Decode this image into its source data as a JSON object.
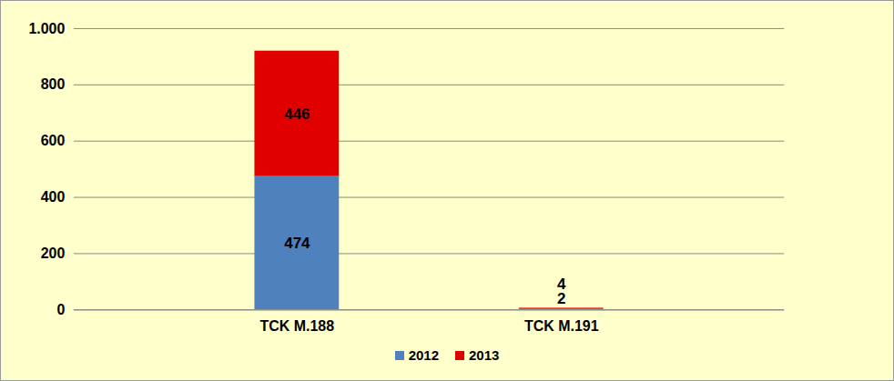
{
  "chart_data": {
    "type": "bar",
    "stacked": true,
    "data_labels": true,
    "grid": true,
    "legend": "bottom",
    "categories": [
      "TCK M.188",
      "TCK M.191"
    ],
    "series": [
      {
        "name": "2012",
        "color": "#4f81bd",
        "values": [
          474,
          2
        ]
      },
      {
        "name": "2013",
        "color": "#e00000",
        "values": [
          446,
          4
        ]
      }
    ],
    "ylim": [
      0,
      1000
    ],
    "yticks": [
      0,
      200,
      400,
      600,
      800,
      {
        "value": 1000,
        "label": "1.000"
      }
    ]
  }
}
